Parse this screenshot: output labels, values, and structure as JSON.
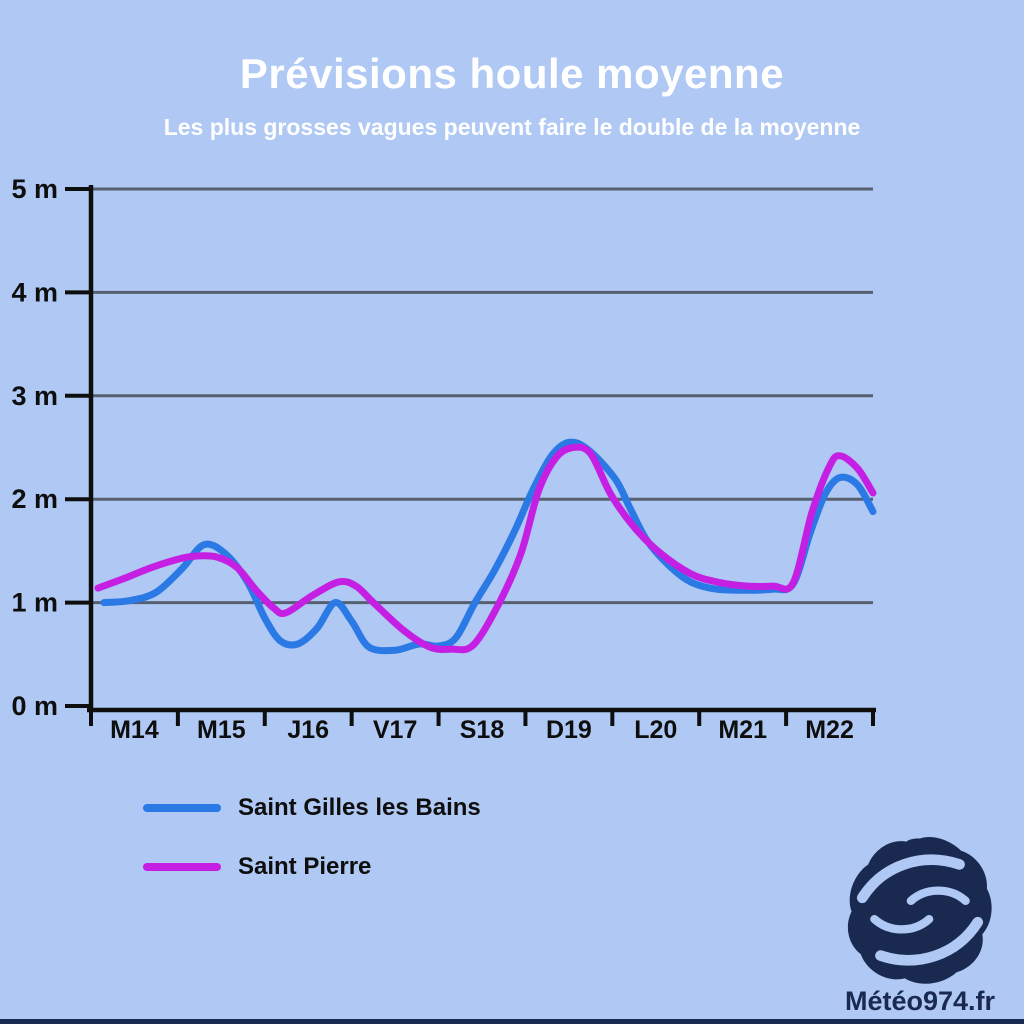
{
  "page": {
    "background_color": "#afc8f4",
    "bottom_bar_color": "#1a2950"
  },
  "header": {
    "title": "Prévisions houle moyenne",
    "subtitle": "Les plus grosses vagues peuvent faire le double de la moyenne",
    "text_color": "#ffffff"
  },
  "chart_data": {
    "type": "line",
    "title": "Prévisions houle moyenne",
    "subtitle": "Les plus grosses vagues peuvent faire le double de la moyenne",
    "xlabel": "",
    "ylabel": "",
    "categories": [
      "M14",
      "M15",
      "J16",
      "V17",
      "S18",
      "D19",
      "L20",
      "M21",
      "M22"
    ],
    "y_tick_labels": [
      "0 m",
      "1 m",
      "2 m",
      "3 m",
      "4 m",
      "5 m"
    ],
    "ylim": [
      0,
      5
    ],
    "x_range_days": [
      0,
      9
    ],
    "grid": true,
    "grid_color": "#566070",
    "axis_color": "#0e0e0e",
    "legend_position": "bottom-left",
    "series": [
      {
        "name": "Saint Gilles les Bains",
        "color": "#2b79e4",
        "points_day_vs_meters": [
          [
            0.15,
            1.0
          ],
          [
            0.45,
            1.02
          ],
          [
            0.75,
            1.1
          ],
          [
            1.05,
            1.33
          ],
          [
            1.3,
            1.56
          ],
          [
            1.55,
            1.47
          ],
          [
            1.8,
            1.2
          ],
          [
            2.0,
            0.85
          ],
          [
            2.18,
            0.63
          ],
          [
            2.38,
            0.6
          ],
          [
            2.6,
            0.75
          ],
          [
            2.81,
            1.0
          ],
          [
            3.0,
            0.82
          ],
          [
            3.2,
            0.57
          ],
          [
            3.5,
            0.54
          ],
          [
            3.78,
            0.6
          ],
          [
            4.0,
            0.58
          ],
          [
            4.2,
            0.66
          ],
          [
            4.42,
            1.0
          ],
          [
            4.65,
            1.32
          ],
          [
            4.88,
            1.7
          ],
          [
            5.08,
            2.08
          ],
          [
            5.3,
            2.42
          ],
          [
            5.5,
            2.55
          ],
          [
            5.72,
            2.48
          ],
          [
            6.03,
            2.2
          ],
          [
            6.2,
            1.92
          ],
          [
            6.4,
            1.6
          ],
          [
            6.65,
            1.36
          ],
          [
            6.9,
            1.2
          ],
          [
            7.2,
            1.13
          ],
          [
            7.55,
            1.12
          ],
          [
            7.85,
            1.13
          ],
          [
            8.08,
            1.18
          ],
          [
            8.28,
            1.68
          ],
          [
            8.45,
            2.05
          ],
          [
            8.62,
            2.21
          ],
          [
            8.82,
            2.14
          ],
          [
            9.0,
            1.88
          ]
        ]
      },
      {
        "name": "Saint Pierre",
        "color": "#c51fe4",
        "points_day_vs_meters": [
          [
            0.08,
            1.14
          ],
          [
            0.4,
            1.24
          ],
          [
            0.7,
            1.34
          ],
          [
            1.0,
            1.42
          ],
          [
            1.2,
            1.45
          ],
          [
            1.45,
            1.44
          ],
          [
            1.68,
            1.34
          ],
          [
            1.9,
            1.12
          ],
          [
            2.1,
            0.95
          ],
          [
            2.24,
            0.9
          ],
          [
            2.55,
            1.07
          ],
          [
            2.85,
            1.2
          ],
          [
            3.05,
            1.16
          ],
          [
            3.25,
            1.0
          ],
          [
            3.6,
            0.73
          ],
          [
            3.9,
            0.57
          ],
          [
            4.15,
            0.55
          ],
          [
            4.4,
            0.59
          ],
          [
            4.7,
            1.0
          ],
          [
            4.95,
            1.48
          ],
          [
            5.15,
            2.08
          ],
          [
            5.35,
            2.4
          ],
          [
            5.55,
            2.5
          ],
          [
            5.75,
            2.44
          ],
          [
            5.98,
            2.05
          ],
          [
            6.25,
            1.73
          ],
          [
            6.55,
            1.48
          ],
          [
            6.9,
            1.28
          ],
          [
            7.2,
            1.2
          ],
          [
            7.55,
            1.16
          ],
          [
            7.85,
            1.16
          ],
          [
            8.08,
            1.19
          ],
          [
            8.3,
            1.88
          ],
          [
            8.5,
            2.32
          ],
          [
            8.62,
            2.42
          ],
          [
            8.82,
            2.3
          ],
          [
            9.0,
            2.06
          ]
        ]
      }
    ]
  },
  "logo": {
    "icon": "cyclone-swirl-icon",
    "text": "Météo974.fr",
    "color": "#1a2950"
  }
}
